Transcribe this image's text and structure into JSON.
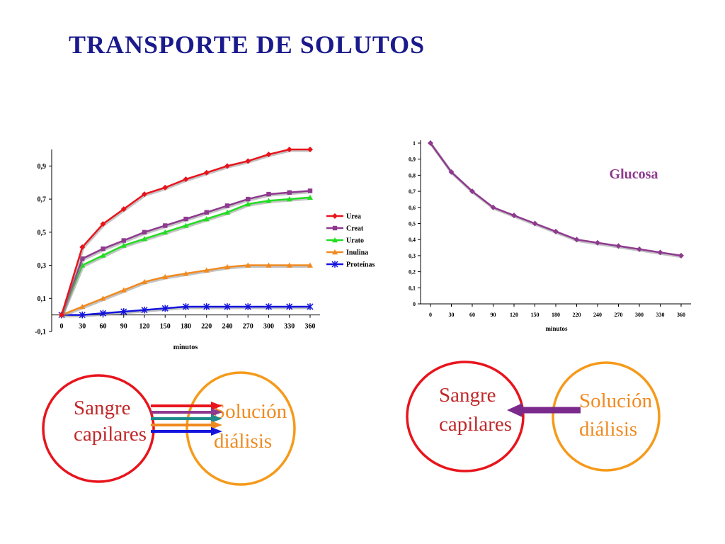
{
  "slide": {
    "title": "TRANSPORTE  DE SOLUTOS"
  },
  "colors": {
    "title": "#1a1a8c",
    "urea": "#e8141c",
    "creat": "#8e3a8e",
    "urato": "#22dd22",
    "inulina": "#f08a20",
    "proteinas": "#1414dd",
    "glucosa": "#8e3a8e",
    "blood_circle": "#e8141c",
    "solution_circle": "#f59a1a",
    "blood_text": "#c0282a",
    "solution_text": "#f08a20",
    "teal_arrow": "#1e8c8c",
    "back_arrow": "#7b2a8c"
  },
  "chart_data": [
    {
      "type": "line",
      "title": "",
      "xlabel": "minutos",
      "ylabel": "",
      "categories": [
        "0",
        "30",
        "60",
        "90",
        "120",
        "150",
        "180",
        "220",
        "240",
        "270",
        "300",
        "330",
        "360"
      ],
      "ylim": [
        -0.1,
        1.0
      ],
      "yticks": [
        "-0,1",
        "0,1",
        "0,3",
        "0,5",
        "0,7",
        "0,9"
      ],
      "legend_position": "right",
      "series": [
        {
          "name": "Urea",
          "marker": "diamond",
          "values": [
            0,
            0.41,
            0.55,
            0.64,
            0.73,
            0.77,
            0.82,
            0.86,
            0.9,
            0.93,
            0.97,
            1.0,
            1.0
          ]
        },
        {
          "name": "Creat",
          "marker": "square",
          "values": [
            0,
            0.34,
            0.4,
            0.45,
            0.5,
            0.54,
            0.58,
            0.62,
            0.66,
            0.7,
            0.73,
            0.74,
            0.75
          ]
        },
        {
          "name": "Urato",
          "marker": "triangle",
          "values": [
            0,
            0.3,
            0.36,
            0.42,
            0.46,
            0.5,
            0.54,
            0.58,
            0.62,
            0.67,
            0.69,
            0.7,
            0.71
          ]
        },
        {
          "name": "Inulina",
          "marker": "triangle",
          "values": [
            0,
            0.05,
            0.1,
            0.15,
            0.2,
            0.23,
            0.25,
            0.27,
            0.29,
            0.3,
            0.3,
            0.3,
            0.3
          ]
        },
        {
          "name": "Proteínas",
          "marker": "star",
          "values": [
            0,
            0.0,
            0.01,
            0.02,
            0.03,
            0.04,
            0.05,
            0.05,
            0.05,
            0.05,
            0.05,
            0.05,
            0.05
          ]
        }
      ]
    },
    {
      "type": "line",
      "title": "",
      "xlabel": "minutos",
      "ylabel": "",
      "categories": [
        "0",
        "30",
        "60",
        "90",
        "120",
        "150",
        "180",
        "220",
        "240",
        "270",
        "300",
        "330",
        "360"
      ],
      "ylim": [
        0,
        1.0
      ],
      "yticks": [
        "0",
        "0,1",
        "0,2",
        "0,3",
        "0,4",
        "0,5",
        "0,6",
        "0,7",
        "0,8",
        "0,9",
        "1"
      ],
      "series": [
        {
          "name": "Glucosa",
          "marker": "diamond",
          "values": [
            1.0,
            0.82,
            0.7,
            0.6,
            0.55,
            0.5,
            0.45,
            0.4,
            0.38,
            0.36,
            0.34,
            0.32,
            0.3
          ]
        }
      ]
    }
  ],
  "diagram_left": {
    "blood_line1": "Sangre",
    "blood_line2": "capilares",
    "sol_line1": "Solución",
    "sol_line2": "diálisis"
  },
  "diagram_right": {
    "blood_line1": "Sangre",
    "blood_line2": "capilares",
    "sol_line1": "Solución",
    "sol_line2": "diálisis"
  }
}
